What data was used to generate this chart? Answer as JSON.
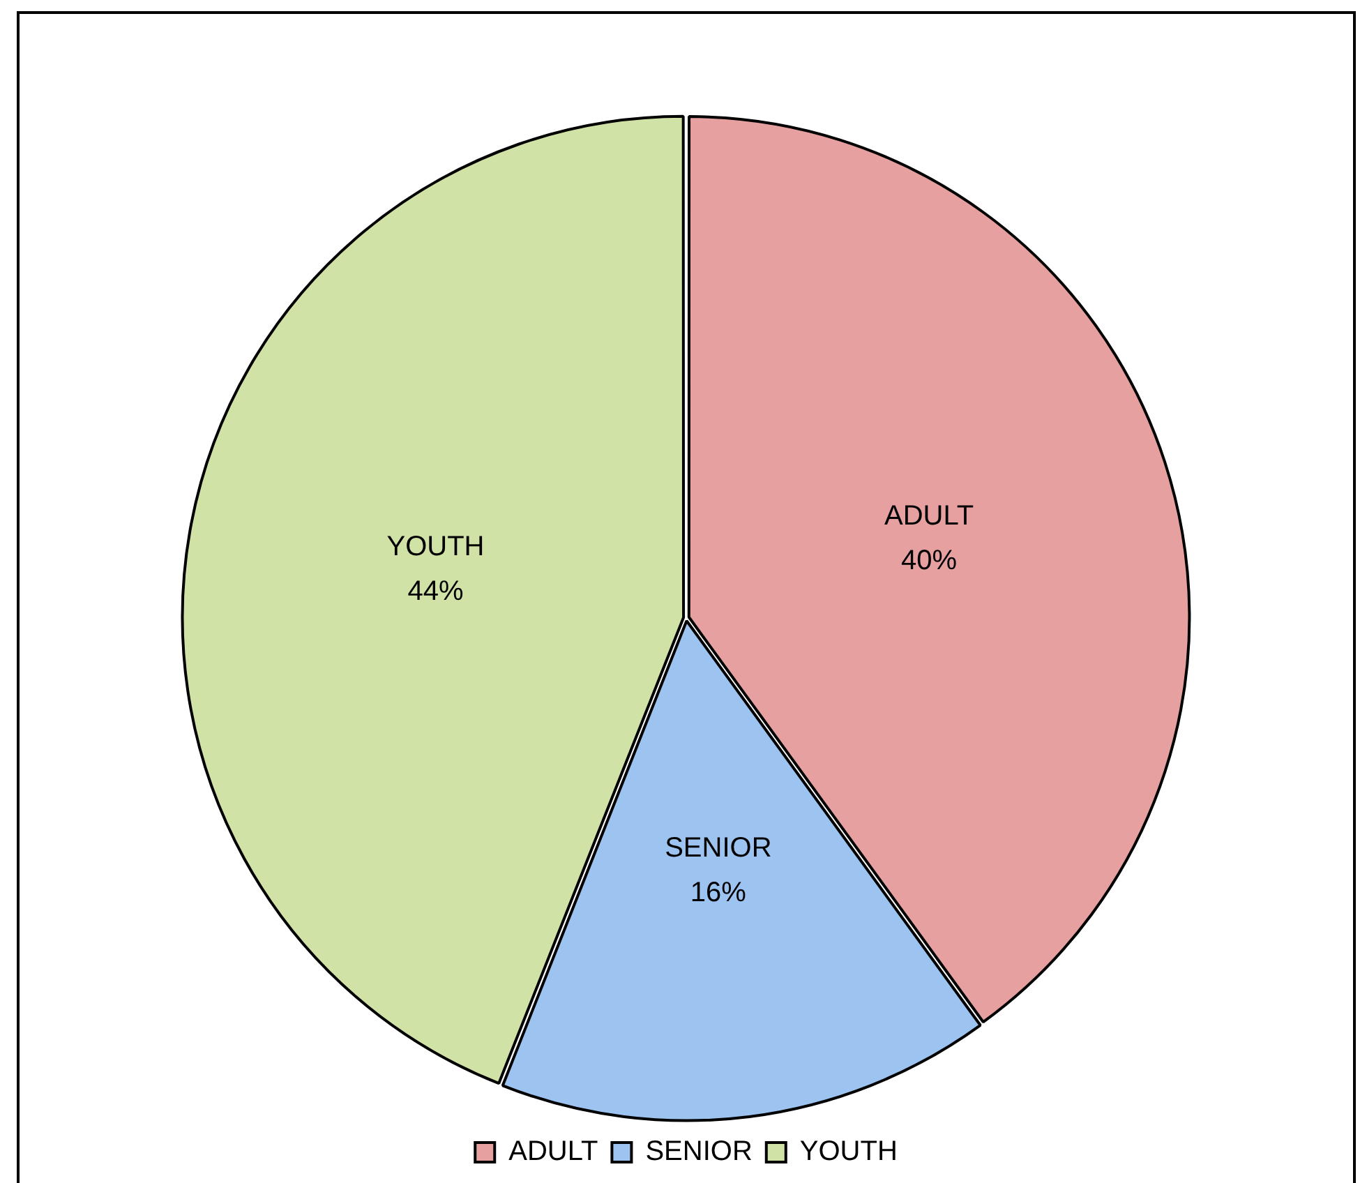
{
  "chart_data": {
    "type": "pie",
    "categories": [
      "ADULT",
      "SENIOR",
      "YOUTH"
    ],
    "values": [
      40,
      16,
      44
    ],
    "colors": [
      "#e6a0a0",
      "#9dc3f0",
      "#d1e2a6"
    ],
    "value_labels": [
      "40%",
      "16%",
      "44%"
    ],
    "legend": "bottom"
  }
}
